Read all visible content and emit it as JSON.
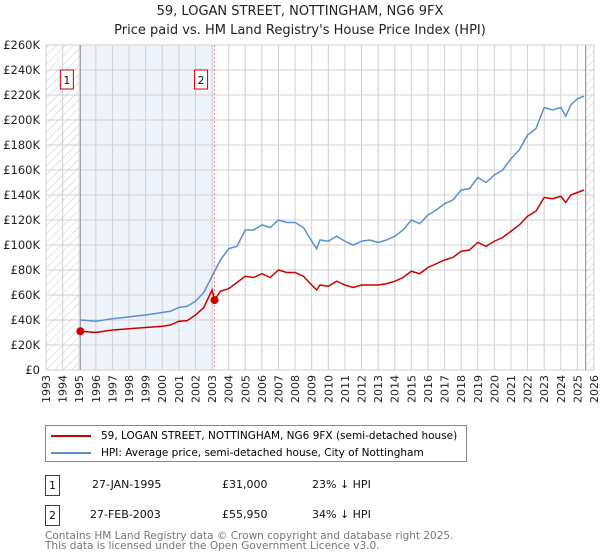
{
  "title": "59, LOGAN STREET, NOTTINGHAM, NG6 9FX",
  "subtitle": "Price paid vs. HM Land Registry's House Price Index (HPI)",
  "colors": {
    "property": "#cc0000",
    "hpi": "#5b8fd0",
    "shade": "#eef3fc"
  },
  "chart_data": {
    "type": "line",
    "title": "59, LOGAN STREET, NOTTINGHAM, NG6 9FX",
    "xlim": [
      1993,
      2026
    ],
    "ylim": [
      0,
      260000
    ],
    "x_ticks": [
      "1993",
      "1994",
      "1995",
      "1996",
      "1997",
      "1998",
      "1999",
      "2000",
      "2001",
      "2002",
      "2003",
      "2004",
      "2005",
      "2006",
      "2007",
      "2008",
      "2009",
      "2010",
      "2011",
      "2012",
      "2013",
      "2014",
      "2015",
      "2016",
      "2017",
      "2018",
      "2019",
      "2020",
      "2021",
      "2022",
      "2023",
      "2024",
      "2025",
      "2026"
    ],
    "y_ticks": [
      "£0",
      "£20K",
      "£40K",
      "£60K",
      "£80K",
      "£100K",
      "£120K",
      "£140K",
      "£160K",
      "£180K",
      "£200K",
      "£220K",
      "£240K",
      "£260K"
    ],
    "series": [
      {
        "name": "59, LOGAN STREET, NOTTINGHAM, NG6 9FX (semi-detached house)",
        "color": "#cc0000",
        "x": [
          1995.07,
          1996,
          1997,
          1998,
          1999,
          2000,
          2000.5,
          2001,
          2001.5,
          2002,
          2002.5,
          2003.0,
          2003.15,
          2003.5,
          2004,
          2004.5,
          2005,
          2005.5,
          2006,
          2006.5,
          2007,
          2007.5,
          2008,
          2008.5,
          2009,
          2009.3,
          2009.5,
          2010,
          2010.5,
          2011,
          2011.5,
          2012,
          2012.5,
          2013,
          2013.5,
          2014,
          2014.5,
          2015,
          2015.5,
          2016,
          2016.5,
          2017,
          2017.5,
          2018,
          2018.5,
          2019,
          2019.5,
          2020,
          2020.5,
          2021,
          2021.5,
          2022,
          2022.5,
          2023,
          2023.5,
          2024,
          2024.3,
          2024.6,
          2025,
          2025.4
        ],
        "y": [
          31,
          30,
          32,
          33,
          34,
          35,
          36,
          39,
          39.5,
          44,
          50,
          64,
          56,
          63,
          65,
          70,
          75,
          74,
          77,
          74,
          80,
          78,
          78,
          75,
          68,
          64,
          68,
          67,
          71,
          68,
          66,
          68,
          68,
          68,
          69,
          71,
          74,
          79,
          77,
          82,
          85,
          88,
          90,
          95,
          96,
          102,
          99,
          103,
          106,
          111,
          116,
          123,
          127,
          138,
          137,
          139,
          134,
          140,
          142,
          144
        ]
      },
      {
        "name": "HPI: Average price, semi-detached house, City of Nottingham",
        "color": "#5b8fd0",
        "x": [
          1995.07,
          1996,
          1997,
          1998,
          1999,
          2000,
          2000.5,
          2001,
          2001.5,
          2002,
          2002.5,
          2003,
          2003.5,
          2004,
          2004.5,
          2005,
          2005.5,
          2006,
          2006.5,
          2007,
          2007.5,
          2008,
          2008.5,
          2009,
          2009.3,
          2009.5,
          2010,
          2010.5,
          2011,
          2011.5,
          2012,
          2012.5,
          2013,
          2013.5,
          2014,
          2014.5,
          2015,
          2015.5,
          2016,
          2016.5,
          2017,
          2017.5,
          2018,
          2018.5,
          2019,
          2019.5,
          2020,
          2020.5,
          2021,
          2021.5,
          2022,
          2022.5,
          2023,
          2023.5,
          2024,
          2024.3,
          2024.6,
          2025,
          2025.4
        ],
        "y": [
          40,
          39,
          41,
          42.5,
          44,
          46,
          47,
          50,
          51,
          55,
          62,
          75,
          88,
          97,
          99,
          112,
          112,
          116,
          114,
          120,
          118,
          118,
          114,
          103,
          97,
          104,
          103,
          107,
          103,
          100,
          103,
          104,
          102,
          104,
          107,
          112,
          120,
          117,
          124,
          128,
          133,
          136,
          144,
          145,
          154,
          150,
          156,
          160,
          169,
          176,
          188,
          193,
          210,
          208,
          210,
          203,
          212,
          217,
          219
        ]
      }
    ],
    "y_unit": "thousands GBP",
    "sales": [
      {
        "label": "1",
        "x": 1995.07,
        "y": 31
      },
      {
        "label": "2",
        "x": 2003.15,
        "y": 55.95
      }
    ],
    "shaded_range": [
      1995.07,
      2003.15
    ],
    "hatched_ranges": [
      [
        1993,
        1995.07
      ],
      [
        2025.5,
        2026
      ]
    ],
    "legend_position": "bottom"
  },
  "legend": {
    "property": "59, LOGAN STREET, NOTTINGHAM, NG6 9FX (semi-detached house)",
    "hpi": "HPI: Average price, semi-detached house, City of Nottingham"
  },
  "sales_table": [
    {
      "num": "1",
      "date": "27-JAN-1995",
      "price": "£31,000",
      "hpi": "23% ↓ HPI"
    },
    {
      "num": "2",
      "date": "27-FEB-2003",
      "price": "£55,950",
      "hpi": "34% ↓ HPI"
    }
  ],
  "footer": {
    "line1": "Contains HM Land Registry data © Crown copyright and database right 2025.",
    "line2": "This data is licensed under the Open Government Licence v3.0."
  }
}
